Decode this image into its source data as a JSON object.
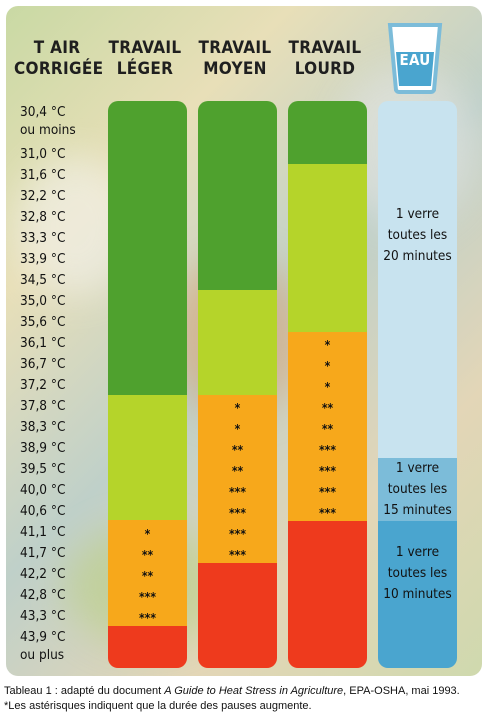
{
  "header": {
    "temp_line1": "T AIR",
    "temp_line2": "CORRIGÉE",
    "light_line1": "TRAVAIL",
    "light_line2": "LÉGER",
    "moderate_line1": "TRAVAIL",
    "moderate_line2": "MOYEN",
    "heavy_line1": "TRAVAIL",
    "heavy_line2": "LOURD",
    "water": "EAU"
  },
  "temperatures": [
    "30,4 °C",
    "ou moins",
    "31,0 °C",
    "31,6 °C",
    "32,2 °C",
    "32,8 °C",
    "33,3 °C",
    "33,9 °C",
    "34,5 °C",
    "35,0 °C",
    "35,6 °C",
    "36,1 °C",
    "36,7 °C",
    "37,2  °C",
    "37,8  °C",
    "38,3 °C",
    "38,9 °C",
    "39,5 °C",
    "40,0 °C",
    "40,6 °C",
    "41,1 °C",
    "41,7 °C",
    "42,2 °C",
    "42,8 °C",
    "43,3 °C",
    "43,9 °C",
    "ou plus"
  ],
  "work_levels": {
    "light": {
      "zones": [
        "dark-green",
        "light-green",
        "orange",
        "red"
      ],
      "stars": [
        "*",
        "**",
        "**",
        "***",
        "***"
      ]
    },
    "moderate": {
      "stars": [
        "*",
        "*",
        "**",
        "**",
        "***",
        "***",
        "***",
        "***"
      ]
    },
    "heavy": {
      "stars": [
        "*",
        "*",
        "*",
        "**",
        "**",
        "***",
        "***",
        "***",
        "***"
      ]
    }
  },
  "water": {
    "zone1_line1": "1 verre",
    "zone1_line2": "toutes les",
    "zone1_line3": "20 minutes",
    "zone2_line1": "1 verre",
    "zone2_line2": "toutes les",
    "zone2_line3": "15 minutes",
    "zone3_line1": "1 verre",
    "zone3_line2": "toutes les",
    "zone3_line3": "10 minutes"
  },
  "caption": {
    "line1_prefix": "Tableau 1 :  adapté du document ",
    "line1_title": "A Guide to Heat Stress in Agriculture",
    "line1_suffix": ", EPA-OSHA, mai 1993.",
    "line2": "*Les astérisques indiquent que la durée des pauses augmente."
  },
  "colors": {
    "dark_green": "#4fa12e",
    "light_green": "#b5d42a",
    "orange": "#f7a81b",
    "red": "#ee3a1d",
    "water_light": "#c8e3ef",
    "water_mid": "#7cbcd9",
    "water_dark": "#4aa5cf"
  }
}
